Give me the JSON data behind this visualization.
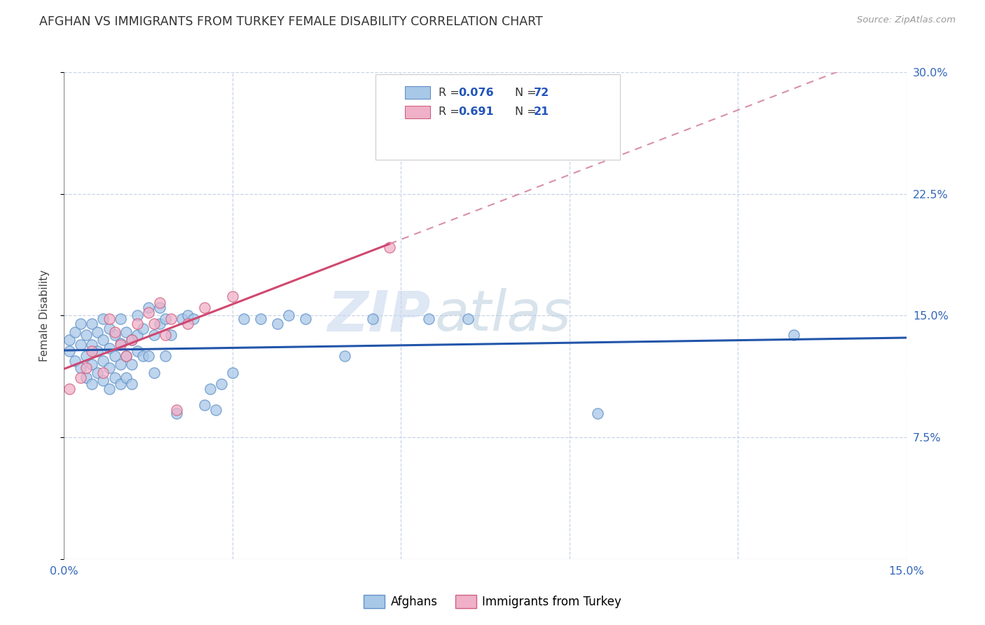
{
  "title": "AFGHAN VS IMMIGRANTS FROM TURKEY FEMALE DISABILITY CORRELATION CHART",
  "source": "Source: ZipAtlas.com",
  "ylabel": "Female Disability",
  "x_min": 0.0,
  "x_max": 0.15,
  "y_min": 0.0,
  "y_max": 0.3,
  "x_ticks": [
    0.0,
    0.03,
    0.06,
    0.09,
    0.12,
    0.15
  ],
  "x_tick_labels": [
    "0.0%",
    "",
    "",
    "",
    "",
    "15.0%"
  ],
  "y_ticks": [
    0.0,
    0.075,
    0.15,
    0.225,
    0.3
  ],
  "y_tick_labels": [
    "",
    "7.5%",
    "15.0%",
    "22.5%",
    "30.0%"
  ],
  "watermark_zip": "ZIP",
  "watermark_atlas": "atlas",
  "legend_R1": "R = 0.076",
  "legend_N1": "N = 72",
  "legend_R2": "R = 0.691",
  "legend_N2": "N = 21",
  "color_afghan": "#a8c8e8",
  "color_afghan_edge": "#6090c8",
  "color_afghan_line": "#2255aa",
  "color_turkey": "#f0b0c8",
  "color_turkey_edge": "#d06080",
  "color_turkey_line": "#d04870",
  "color_turkey_dashed": "#d890a8",
  "background_color": "#ffffff",
  "grid_color": "#c8d4e8",
  "afghans_x": [
    0.001,
    0.001,
    0.002,
    0.002,
    0.003,
    0.003,
    0.003,
    0.004,
    0.004,
    0.004,
    0.005,
    0.005,
    0.005,
    0.005,
    0.006,
    0.006,
    0.006,
    0.007,
    0.007,
    0.007,
    0.007,
    0.008,
    0.008,
    0.008,
    0.008,
    0.009,
    0.009,
    0.009,
    0.01,
    0.01,
    0.01,
    0.01,
    0.011,
    0.011,
    0.011,
    0.012,
    0.012,
    0.012,
    0.013,
    0.013,
    0.013,
    0.014,
    0.014,
    0.015,
    0.015,
    0.016,
    0.016,
    0.017,
    0.017,
    0.018,
    0.018,
    0.019,
    0.02,
    0.021,
    0.022,
    0.023,
    0.025,
    0.026,
    0.027,
    0.028,
    0.03,
    0.032,
    0.035,
    0.038,
    0.04,
    0.043,
    0.05,
    0.055,
    0.065,
    0.072,
    0.095,
    0.13
  ],
  "afghans_y": [
    0.128,
    0.135,
    0.122,
    0.14,
    0.118,
    0.132,
    0.145,
    0.112,
    0.125,
    0.138,
    0.108,
    0.12,
    0.132,
    0.145,
    0.115,
    0.128,
    0.14,
    0.11,
    0.122,
    0.135,
    0.148,
    0.105,
    0.118,
    0.13,
    0.142,
    0.112,
    0.125,
    0.138,
    0.108,
    0.12,
    0.133,
    0.148,
    0.112,
    0.125,
    0.14,
    0.108,
    0.12,
    0.135,
    0.128,
    0.138,
    0.15,
    0.125,
    0.142,
    0.155,
    0.125,
    0.115,
    0.138,
    0.145,
    0.155,
    0.125,
    0.148,
    0.138,
    0.09,
    0.148,
    0.15,
    0.148,
    0.095,
    0.105,
    0.092,
    0.108,
    0.115,
    0.148,
    0.148,
    0.145,
    0.15,
    0.148,
    0.125,
    0.148,
    0.148,
    0.148,
    0.09,
    0.138
  ],
  "turkey_x": [
    0.001,
    0.003,
    0.004,
    0.005,
    0.007,
    0.008,
    0.009,
    0.01,
    0.011,
    0.012,
    0.013,
    0.015,
    0.016,
    0.017,
    0.018,
    0.019,
    0.02,
    0.022,
    0.025,
    0.03,
    0.058
  ],
  "turkey_y": [
    0.105,
    0.112,
    0.118,
    0.128,
    0.115,
    0.148,
    0.14,
    0.132,
    0.125,
    0.135,
    0.145,
    0.152,
    0.145,
    0.158,
    0.138,
    0.148,
    0.092,
    0.145,
    0.155,
    0.162,
    0.192
  ]
}
